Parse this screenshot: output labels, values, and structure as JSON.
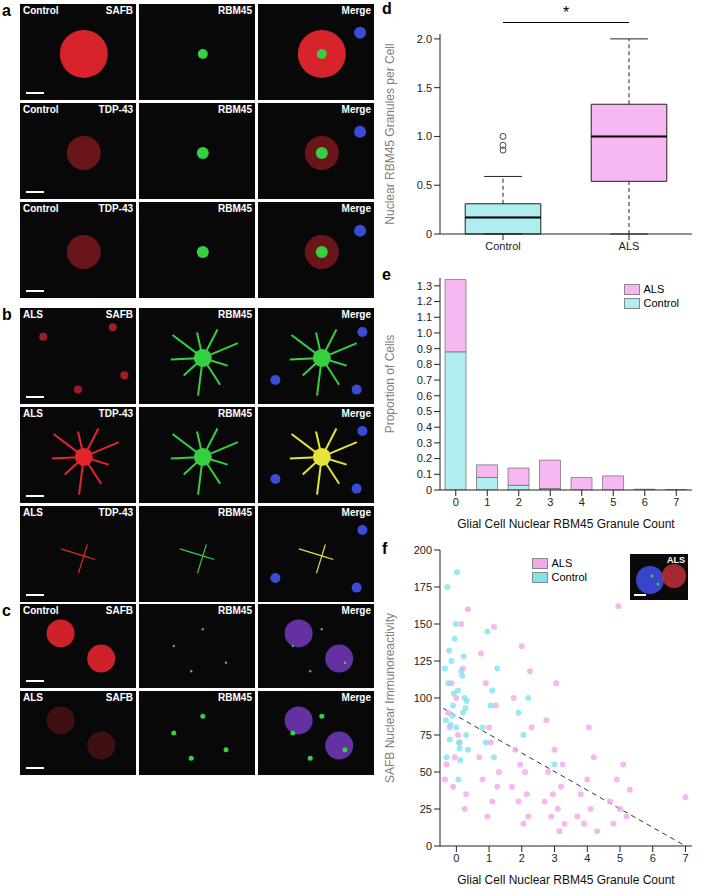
{
  "image_panels": [
    {
      "letter": "a",
      "rows": [
        {
          "condition": "Control",
          "channels": [
            "SAFB",
            "RBM45",
            "Merge"
          ]
        },
        {
          "condition": "Control",
          "channels": [
            "TDP-43",
            "RBM45",
            "Merge"
          ]
        },
        {
          "condition": "Control",
          "channels": [
            "TDP-43",
            "RBM45",
            "Merge"
          ]
        }
      ]
    },
    {
      "letter": "b",
      "rows": [
        {
          "condition": "ALS",
          "channels": [
            "SAFB",
            "RBM45",
            "Merge"
          ]
        },
        {
          "condition": "ALS",
          "channels": [
            "TDP-43",
            "RBM45",
            "Merge"
          ]
        },
        {
          "condition": "ALS",
          "channels": [
            "TDP-43",
            "RBM45",
            "Merge"
          ]
        }
      ]
    },
    {
      "letter": "c",
      "rows": [
        {
          "condition": "Control",
          "channels": [
            "SAFB",
            "RBM45",
            "Merge"
          ]
        },
        {
          "condition": "ALS",
          "channels": [
            "SAFB",
            "RBM45",
            "Merge"
          ]
        }
      ]
    }
  ],
  "inset": {
    "label": "ALS"
  },
  "chart_data": [
    {
      "panel_label": "d",
      "type": "box",
      "categories": [
        "Control",
        "ALS"
      ],
      "ylabel": "Nuclear RBM45 Granules per Cell",
      "ylim": [
        0,
        2.05
      ],
      "yticks": [
        0,
        0.5,
        {
          "value": 1,
          "label": "1.0"
        },
        1.5,
        {
          "value": 2,
          "label": "2.0"
        }
      ],
      "boxes": [
        {
          "color": "#aeeef0",
          "whisker_low": 0,
          "q1": 0,
          "median": 0.17,
          "q3": 0.31,
          "whisker_high": 0.59,
          "outliers": [
            0.86,
            0.91,
            1.0
          ]
        },
        {
          "color": "#f7b8f2",
          "whisker_low": 0,
          "q1": 0.54,
          "median": 1.0,
          "q3": 1.33,
          "whisker_high": 2.0,
          "outliers": []
        }
      ],
      "annotations": [
        {
          "text": "*",
          "between": [
            "Control",
            "ALS"
          ]
        }
      ]
    },
    {
      "panel_label": "e",
      "type": "bar",
      "stacked": true,
      "categories": [
        0,
        1,
        2,
        3,
        4,
        5,
        6,
        7
      ],
      "xlabel": "Glial Cell Nuclear RBM45 Granule Count",
      "ylabel": "Proportion of Cells",
      "ylim": [
        0,
        1.35
      ],
      "yticks": [
        0,
        0.1,
        0.2,
        0.3,
        0.4,
        0.5,
        0.6,
        0.7,
        0.8,
        0.9,
        {
          "value": 1,
          "label": "1.0"
        },
        1.1,
        1.2,
        1.3
      ],
      "legend": "upper right",
      "series": [
        {
          "name": "ALS",
          "color": "#f7b8f2",
          "values": [
            0.46,
            0.08,
            0.11,
            0.18,
            0.08,
            0.09,
            0.005,
            0.003
          ]
        },
        {
          "name": "Control",
          "color": "#aeeef0",
          "values": [
            0.88,
            0.08,
            0.03,
            0.01,
            0,
            0,
            0,
            0
          ]
        }
      ]
    },
    {
      "panel_label": "f",
      "type": "scatter",
      "xlabel": "Glial Cell Nuclear RBM45 Granule Count",
      "ylabel": "SAFB Nuclear Immunoreactivity",
      "xlim": [
        -0.5,
        7.2
      ],
      "xticks": [
        0,
        1,
        2,
        3,
        4,
        5,
        6,
        7
      ],
      "ylim": [
        0,
        200
      ],
      "yticks": [
        0,
        25,
        50,
        75,
        100,
        125,
        150,
        175,
        200
      ],
      "legend": "upper right",
      "series": [
        {
          "name": "ALS",
          "color": "#f3a8ec",
          "x": [
            -0.3,
            -0.2,
            -0.1,
            0,
            0.1,
            0.2,
            0.3,
            -0.25,
            -0.05,
            0.15,
            0.25,
            -0.15,
            0.05,
            -0.35,
            0.35,
            0.7,
            0.8,
            0.9,
            1.0,
            1.1,
            1.2,
            1.3,
            0.75,
            0.95,
            1.05,
            1.25,
            1.15,
            1.7,
            1.8,
            1.9,
            2.0,
            2.1,
            2.2,
            2.3,
            1.75,
            1.95,
            2.15,
            2.25,
            2.05,
            2.7,
            2.8,
            2.9,
            3.0,
            3.1,
            3.2,
            3.3,
            2.75,
            2.95,
            3.15,
            3.25,
            3.05,
            3.7,
            3.8,
            3.9,
            4.0,
            4.1,
            4.2,
            4.3,
            4.05,
            4.7,
            4.8,
            4.9,
            5.0,
            5.1,
            5.2,
            5.3,
            4.95,
            7.0
          ],
          "y": [
            55,
            80,
            40,
            100,
            70,
            120,
            35,
            90,
            60,
            150,
            25,
            110,
            75,
            45,
            160,
            60,
            45,
            110,
            80,
            30,
            95,
            50,
            130,
            20,
            70,
            40,
            148,
            40,
            65,
            30,
            135,
            50,
            20,
            80,
            100,
            55,
            35,
            118,
            15,
            30,
            50,
            20,
            65,
            25,
            40,
            15,
            85,
            35,
            10,
            55,
            110,
            20,
            35,
            15,
            45,
            25,
            60,
            10,
            80,
            30,
            15,
            45,
            25,
            55,
            20,
            38,
            162,
            33
          ]
        },
        {
          "name": "Control",
          "color": "#7fe3ec",
          "x": [
            -0.32,
            -0.25,
            -0.2,
            -0.15,
            -0.1,
            -0.05,
            0,
            0.05,
            0.1,
            0.15,
            0.2,
            0.25,
            0.3,
            -0.3,
            -0.22,
            -0.12,
            -0.02,
            0.08,
            0.18,
            0.28,
            -0.28,
            -0.08,
            0.12,
            0.22,
            -0.18,
            0.02,
            0.32,
            -0.35,
            0.35,
            0.06,
            0.8,
            0.95,
            1.05,
            1.15,
            1.25,
            0.9,
            1.1,
            1.9,
            2.05,
            2.2,
            3.0
          ],
          "y": [
            85,
            110,
            72,
            125,
            95,
            140,
            80,
            105,
            66,
            118,
            90,
            100,
            75,
            60,
            132,
            88,
            150,
            70,
            115,
            93,
            175,
            103,
            58,
            128,
            82,
            185,
            98,
            120,
            65,
            45,
            80,
            145,
            95,
            60,
            120,
            70,
            105,
            90,
            75,
            100,
            55
          ]
        }
      ],
      "trend_line": {
        "x": [
          -0.4,
          7.0
        ],
        "y": [
          93,
          0
        ],
        "line_style": "dashed"
      }
    }
  ]
}
